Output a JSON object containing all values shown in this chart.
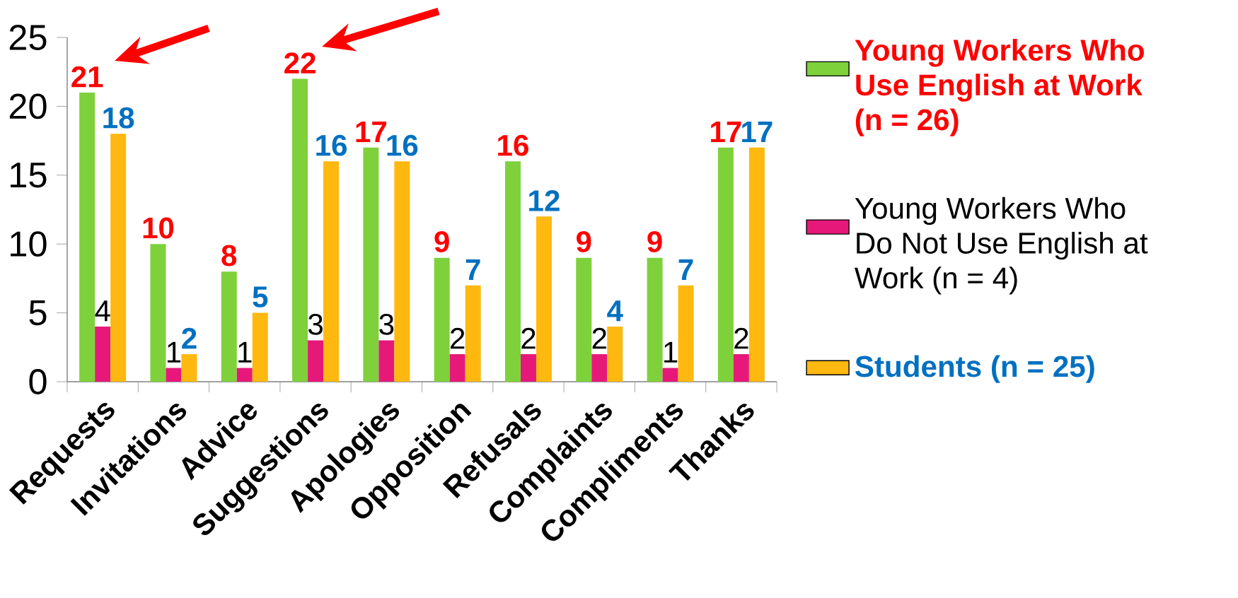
{
  "chart_data": {
    "type": "bar",
    "categories": [
      "Requests",
      "Invitations",
      "Advice",
      "Suggestions",
      "Apologies",
      "Opposition",
      "Refusals",
      "Complaints",
      "Compliments",
      "Thanks"
    ],
    "series": [
      {
        "name": "**Young Workers Who Use English at Work (n = 26)**",
        "color": "#7ed13b",
        "values": [
          21,
          10,
          8,
          22,
          17,
          9,
          16,
          9,
          9,
          17
        ]
      },
      {
        "name": "Young Workers Who Do Not Use English at Work (n = 4)",
        "color": "#e6197a",
        "values": [
          4,
          1,
          1,
          3,
          3,
          2,
          2,
          2,
          1,
          2
        ]
      },
      {
        "name": "**Students (n = 25)**",
        "color": "#ffb80f",
        "values": [
          18,
          2,
          5,
          16,
          16,
          7,
          12,
          4,
          7,
          17
        ]
      }
    ],
    "ylim": [
      0,
      25
    ],
    "yticks": [
      0,
      5,
      10,
      15,
      20,
      25
    ],
    "data_labels": true,
    "legend": "right",
    "grid": false
  }
}
